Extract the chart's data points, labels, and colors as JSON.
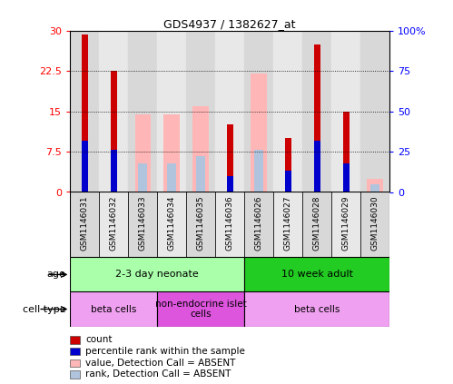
{
  "title": "GDS4937 / 1382627_at",
  "samples": [
    "GSM1146031",
    "GSM1146032",
    "GSM1146033",
    "GSM1146034",
    "GSM1146035",
    "GSM1146036",
    "GSM1146026",
    "GSM1146027",
    "GSM1146028",
    "GSM1146029",
    "GSM1146030"
  ],
  "red_bars": [
    29.3,
    22.5,
    null,
    null,
    null,
    12.5,
    null,
    10.0,
    27.5,
    15.0,
    null
  ],
  "pink_bars": [
    null,
    null,
    14.5,
    14.5,
    16.0,
    null,
    22.0,
    null,
    null,
    null,
    2.5
  ],
  "blue_bars_pct": [
    32.0,
    26.0,
    null,
    null,
    null,
    10.0,
    null,
    13.0,
    32.0,
    18.0,
    null
  ],
  "lblue_bars_pct": [
    null,
    null,
    18.0,
    18.0,
    22.0,
    null,
    26.0,
    null,
    null,
    null,
    5.0
  ],
  "ylim": [
    0,
    30
  ],
  "y2lim": [
    0,
    100
  ],
  "yticks": [
    0,
    7.5,
    15,
    22.5,
    30
  ],
  "ytick_labels": [
    "0",
    "7.5",
    "15",
    "22.5",
    "30"
  ],
  "y2ticks": [
    0,
    25,
    50,
    75,
    100
  ],
  "y2tick_labels": [
    "0",
    "25",
    "50",
    "75",
    "100%"
  ],
  "age_groups": [
    {
      "label": "2-3 day neonate",
      "start": 0,
      "end": 6,
      "color": "#aaffaa"
    },
    {
      "label": "10 week adult",
      "start": 6,
      "end": 11,
      "color": "#22cc22"
    }
  ],
  "cell_groups": [
    {
      "label": "beta cells",
      "start": 0,
      "end": 3,
      "color": "#f0a0f0"
    },
    {
      "label": "non-endocrine islet\ncells",
      "start": 3,
      "end": 6,
      "color": "#dd55dd"
    },
    {
      "label": "beta cells",
      "start": 6,
      "end": 11,
      "color": "#f0a0f0"
    }
  ],
  "legend_items": [
    {
      "color": "#cc0000",
      "label": "count"
    },
    {
      "color": "#0000cc",
      "label": "percentile rank within the sample"
    },
    {
      "color": "#ffb6b6",
      "label": "value, Detection Call = ABSENT"
    },
    {
      "color": "#b0c4de",
      "label": "rank, Detection Call = ABSENT"
    }
  ],
  "red_color": "#cc0000",
  "pink_color": "#ffb6b6",
  "blue_color": "#0000cc",
  "lblue_color": "#b0c4de",
  "col_bg_even": "#d8d8d8",
  "col_bg_odd": "#e8e8e8"
}
